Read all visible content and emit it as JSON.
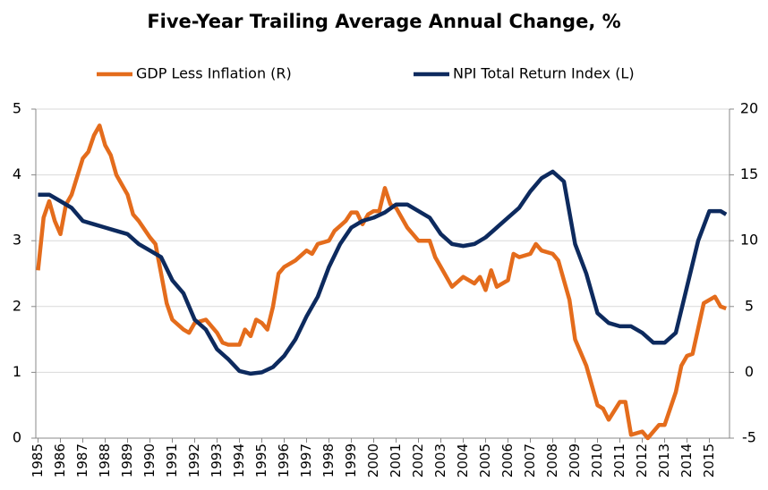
{
  "chart_data": {
    "type": "line",
    "title": "Five-Year Trailing Average Annual Change, %",
    "xlim": [
      1984.9,
      2015.9
    ],
    "xticks": [
      1985,
      1986,
      1987,
      1988,
      1989,
      1990,
      1991,
      1992,
      1993,
      1994,
      1995,
      1996,
      1997,
      1998,
      1999,
      2000,
      2001,
      2002,
      2003,
      2004,
      2005,
      2006,
      2007,
      2008,
      2009,
      2010,
      2011,
      2012,
      2013,
      2014,
      2015
    ],
    "ylim": [
      0,
      5
    ],
    "yticks": [
      0,
      1,
      2,
      3,
      4,
      5
    ],
    "y2lim": [
      -5,
      20
    ],
    "y2ticks": [
      -5,
      0,
      5,
      10,
      15,
      20
    ],
    "grid": true,
    "legend": "top",
    "series": [
      {
        "name": "GDP Less Inflation (R)",
        "color": "#e46c1c",
        "axis": "y2",
        "x": [
          1985,
          1985.25,
          1985.5,
          1985.75,
          1986,
          1986.25,
          1986.5,
          1987,
          1987.25,
          1987.5,
          1987.75,
          1988,
          1988.25,
          1988.5,
          1989,
          1989.25,
          1989.5,
          1990,
          1990.25,
          1990.5,
          1990.75,
          1991,
          1991.5,
          1991.75,
          1992,
          1992.5,
          1993,
          1993.25,
          1993.5,
          1994,
          1994.25,
          1994.5,
          1994.75,
          1995,
          1995.25,
          1995.5,
          1995.75,
          1996,
          1996.5,
          1997,
          1997.25,
          1997.5,
          1998,
          1998.25,
          1998.75,
          1999,
          1999.25,
          1999.5,
          1999.75,
          2000,
          2000.25,
          2000.5,
          2000.75,
          2001,
          2001.5,
          2002,
          2002.5,
          2002.75,
          2003,
          2003.5,
          2004,
          2004.5,
          2004.75,
          2005,
          2005.25,
          2005.5,
          2006,
          2006.25,
          2006.5,
          2007,
          2007.25,
          2007.5,
          2008,
          2008.25,
          2008.75,
          2009,
          2009.5,
          2010,
          2010.25,
          2010.5,
          2011,
          2011.25,
          2011.5,
          2012,
          2012.25,
          2012.75,
          2013,
          2013.5,
          2013.75,
          2014,
          2014.25,
          2014.75,
          2015,
          2015.25,
          2015.5,
          2015.75
        ],
        "values": [
          7.75,
          11.75,
          13,
          11.5,
          10.5,
          12.75,
          13.5,
          16.25,
          16.75,
          18,
          18.75,
          17.25,
          16.5,
          15,
          13.5,
          12,
          11.5,
          10.25,
          9.75,
          7.5,
          5.25,
          4,
          3.25,
          3,
          3.75,
          4,
          3,
          2.25,
          2.1,
          2.1,
          3.25,
          2.75,
          4,
          3.75,
          3.25,
          5,
          7.5,
          8,
          8.5,
          9.25,
          9,
          9.75,
          10,
          10.75,
          11.5,
          12.15,
          12.15,
          11.25,
          12,
          12.25,
          12.25,
          14,
          12.75,
          12.5,
          11,
          10,
          10,
          8.75,
          8,
          6.5,
          7.25,
          6.75,
          7.25,
          6.25,
          7.75,
          6.5,
          7,
          9,
          8.75,
          9,
          9.75,
          9.25,
          9,
          8.5,
          5.5,
          2.5,
          0.5,
          -2.5,
          -2.75,
          -3.6,
          -2.25,
          -2.25,
          -4.75,
          -4.5,
          -5,
          -4,
          -4,
          -1.5,
          0.5,
          1.25,
          1.4,
          5.25,
          5.5,
          5.75,
          5,
          4.85
        ]
      },
      {
        "name": "NPI Total Return Index (L)",
        "color": "#0d2a5e",
        "axis": "y",
        "x": [
          1985,
          1985.5,
          1986,
          1986.5,
          1987,
          1987.5,
          1988,
          1988.5,
          1989,
          1989.5,
          1990,
          1990.5,
          1991,
          1991.5,
          1992,
          1992.5,
          1993,
          1993.5,
          1994,
          1994.5,
          1995,
          1995.5,
          1996,
          1996.5,
          1997,
          1997.5,
          1998,
          1998.5,
          1999,
          1999.5,
          2000,
          2000.5,
          2001,
          2001.5,
          2002,
          2002.5,
          2003,
          2003.5,
          2004,
          2004.5,
          2005,
          2005.5,
          2006,
          2006.5,
          2007,
          2007.5,
          2008,
          2008.5,
          2009,
          2009.5,
          2010,
          2010.5,
          2011,
          2011.5,
          2012,
          2012.5,
          2013,
          2013.5,
          2014,
          2014.5,
          2015,
          2015.5,
          2015.75
        ],
        "values": [
          3.7,
          3.7,
          3.6,
          3.5,
          3.3,
          3.25,
          3.2,
          3.15,
          3.1,
          2.95,
          2.85,
          2.75,
          2.4,
          2.2,
          1.8,
          1.65,
          1.35,
          1.2,
          1.02,
          0.98,
          1,
          1.08,
          1.25,
          1.5,
          1.85,
          2.15,
          2.6,
          2.95,
          3.2,
          3.3,
          3.35,
          3.43,
          3.55,
          3.55,
          3.45,
          3.35,
          3.1,
          2.95,
          2.92,
          2.95,
          3.05,
          3.2,
          3.35,
          3.5,
          3.75,
          3.95,
          4.05,
          3.9,
          2.95,
          2.5,
          1.9,
          1.75,
          1.7,
          1.7,
          1.6,
          1.45,
          1.45,
          1.6,
          2.3,
          3,
          3.45,
          3.45,
          3.4
        ]
      }
    ]
  }
}
